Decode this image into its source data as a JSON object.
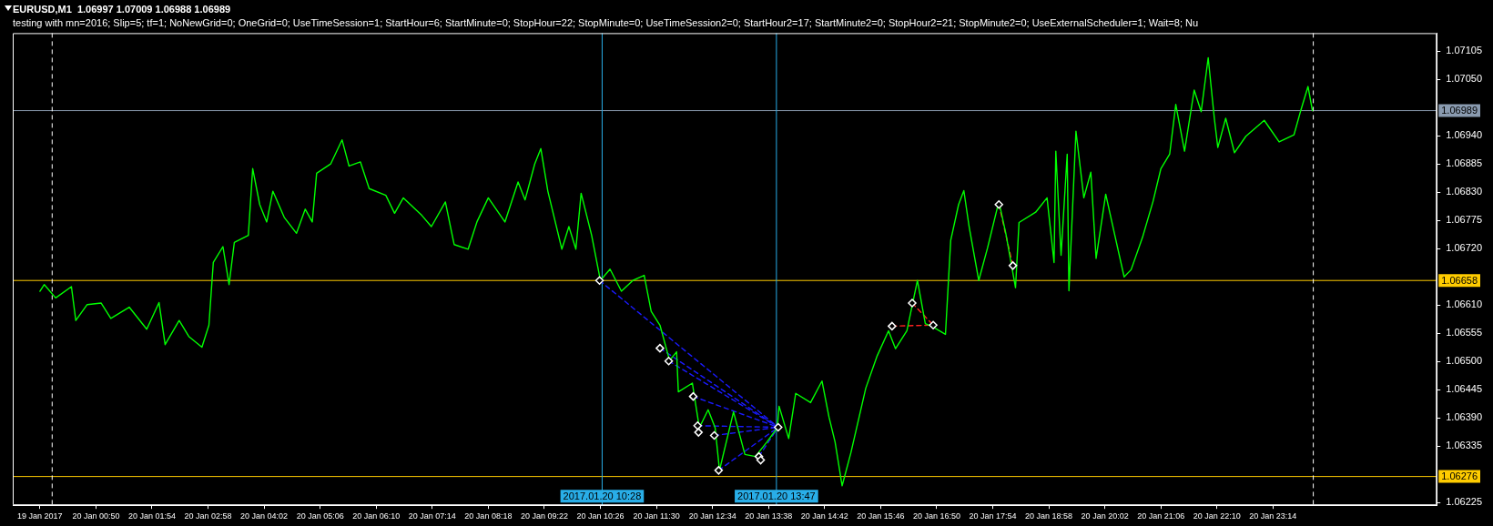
{
  "chart_data": {
    "type": "line",
    "title": "EURUSD,M1  1.06997 1.07009 1.06988 1.06989",
    "subtitle": "testing with mn=2016; Slip=5; tf=1; NoNewGrid=0; OneGrid=0; UseTimeSession=1; StartHour=6; StartMinute=0; StopHour=22; StopMinute=0; UseTimeSession2=0; StartHour2=17; StartMinute2=0; StopHour2=21; StopMinute2=0; UseExternalScheduler=1; Wait=8; Nu",
    "xlim": [
      "2017-01-19T23:15",
      "2017-01-21T02:21"
    ],
    "xticks": [
      {
        "value": "2017-01-19T23:46",
        "label": "19 Jan 2017"
      },
      {
        "value": "2017-01-20T00:50",
        "label": "20 Jan 00:50"
      },
      {
        "value": "2017-01-20T01:54",
        "label": "20 Jan 01:54"
      },
      {
        "value": "2017-01-20T02:58",
        "label": "20 Jan 02:58"
      },
      {
        "value": "2017-01-20T04:02",
        "label": "20 Jan 04:02"
      },
      {
        "value": "2017-01-20T05:06",
        "label": "20 Jan 05:06"
      },
      {
        "value": "2017-01-20T06:10",
        "label": "20 Jan 06:10"
      },
      {
        "value": "2017-01-20T07:14",
        "label": "20 Jan 07:14"
      },
      {
        "value": "2017-01-20T08:18",
        "label": "20 Jan 08:18"
      },
      {
        "value": "2017-01-20T09:22",
        "label": "20 Jan 09:22"
      },
      {
        "value": "2017-01-20T10:26",
        "label": "20 Jan 10:26"
      },
      {
        "value": "2017-01-20T11:30",
        "label": "20 Jan 11:30"
      },
      {
        "value": "2017-01-20T12:34",
        "label": "20 Jan 12:34"
      },
      {
        "value": "2017-01-20T13:38",
        "label": "20 Jan 13:38"
      },
      {
        "value": "2017-01-20T14:42",
        "label": "20 Jan 14:42"
      },
      {
        "value": "2017-01-20T15:46",
        "label": "20 Jan 15:46"
      },
      {
        "value": "2017-01-20T16:50",
        "label": "20 Jan 16:50"
      },
      {
        "value": "2017-01-20T17:54",
        "label": "20 Jan 17:54"
      },
      {
        "value": "2017-01-20T18:58",
        "label": "20 Jan 18:58"
      },
      {
        "value": "2017-01-20T20:02",
        "label": "20 Jan 20:02"
      },
      {
        "value": "2017-01-20T21:06",
        "label": "20 Jan 21:06"
      },
      {
        "value": "2017-01-20T22:10",
        "label": "20 Jan 22:10"
      },
      {
        "value": "2017-01-20T23:14",
        "label": "20 Jan 23:14"
      }
    ],
    "ylim": [
      1.0622,
      1.0714
    ],
    "yticks": [
      {
        "value": 1.07105,
        "label": "1.07105"
      },
      {
        "value": 1.0705,
        "label": "1.07050"
      },
      {
        "value": 1.0694,
        "label": "1.06940"
      },
      {
        "value": 1.06885,
        "label": "1.06885"
      },
      {
        "value": 1.0683,
        "label": "1.06830"
      },
      {
        "value": 1.06775,
        "label": "1.06775"
      },
      {
        "value": 1.0672,
        "label": "1.06720"
      },
      {
        "value": 1.0661,
        "label": "1.06610"
      },
      {
        "value": 1.06555,
        "label": "1.06555"
      },
      {
        "value": 1.065,
        "label": "1.06500"
      },
      {
        "value": 1.06445,
        "label": "1.06445"
      },
      {
        "value": 1.0639,
        "label": "1.06390"
      },
      {
        "value": 1.06335,
        "label": "1.06335"
      },
      {
        "value": 1.06225,
        "label": "1.06225"
      }
    ],
    "ref_lines": [
      {
        "axis": "y",
        "value": 1.06989,
        "label": "1.06989",
        "color": "#8a9bb0"
      },
      {
        "axis": "y",
        "value": 1.06658,
        "label": "1.06658",
        "color": "#ffcc00"
      },
      {
        "axis": "y",
        "value": 1.06276,
        "label": "1.06276",
        "color": "#ffcc00"
      },
      {
        "axis": "x",
        "value": "2017-01-20T10:28",
        "label": "2017.01.20 10:28",
        "color": "#29aee8"
      },
      {
        "axis": "x",
        "value": "2017-01-20T13:47",
        "label": "2017.01.20 13:47",
        "color": "#29aee8"
      },
      {
        "axis": "x",
        "value": "2017-01-20T00:00",
        "color": "#ffffff",
        "line_style": "dashed"
      },
      {
        "axis": "x",
        "value": "2017-01-21T00:00",
        "color": "#ffffff",
        "line_style": "dashed"
      }
    ],
    "series": [
      {
        "color": "#00ff00",
        "x": [
          "2017-01-19T23:46",
          "2017-01-19T23:51",
          "2017-01-20T00:04",
          "2017-01-20T00:22",
          "2017-01-20T00:27",
          "2017-01-20T00:40",
          "2017-01-20T00:56",
          "2017-01-20T01:07",
          "2017-01-20T01:28",
          "2017-01-20T01:48",
          "2017-01-20T02:02",
          "2017-01-20T02:09",
          "2017-01-20T02:25",
          "2017-01-20T02:36",
          "2017-01-20T02:51",
          "2017-01-20T02:59",
          "2017-01-20T03:04",
          "2017-01-20T03:15",
          "2017-01-20T03:22",
          "2017-01-20T03:28",
          "2017-01-20T03:44",
          "2017-01-20T03:49",
          "2017-01-20T03:57",
          "2017-01-20T04:05",
          "2017-01-20T04:12",
          "2017-01-20T04:25",
          "2017-01-20T04:39",
          "2017-01-20T04:49",
          "2017-01-20T04:57",
          "2017-01-20T05:02",
          "2017-01-20T05:18",
          "2017-01-20T05:31",
          "2017-01-20T05:39",
          "2017-01-20T05:52",
          "2017-01-20T06:02",
          "2017-01-20T06:21",
          "2017-01-20T06:31",
          "2017-01-20T06:41",
          "2017-01-20T07:02",
          "2017-01-20T07:13",
          "2017-01-20T07:29",
          "2017-01-20T07:39",
          "2017-01-20T07:55",
          "2017-01-20T08:05",
          "2017-01-20T08:18",
          "2017-01-20T08:37",
          "2017-01-20T08:52",
          "2017-01-20T09:00",
          "2017-01-20T09:11",
          "2017-01-20T09:18",
          "2017-01-20T09:26",
          "2017-01-20T09:42",
          "2017-01-20T09:50",
          "2017-01-20T09:58",
          "2017-01-20T10:04",
          "2017-01-20T10:16",
          "2017-01-20T10:26",
          "2017-01-20T10:37",
          "2017-01-20T10:50",
          "2017-01-20T11:03",
          "2017-01-20T11:16",
          "2017-01-20T11:24",
          "2017-01-20T11:34",
          "2017-01-20T11:45",
          "2017-01-20T11:53",
          "2017-01-20T11:55",
          "2017-01-20T12:11",
          "2017-01-20T12:19",
          "2017-01-20T12:29",
          "2017-01-20T12:37",
          "2017-01-20T12:42",
          "2017-01-20T12:58",
          "2017-01-20T13:11",
          "2017-01-20T13:23",
          "2017-01-20T13:36",
          "2017-01-20T13:48",
          "2017-01-20T13:50",
          "2017-01-20T14:01",
          "2017-01-20T14:09",
          "2017-01-20T14:26",
          "2017-01-20T14:39",
          "2017-01-20T14:47",
          "2017-01-20T14:54",
          "2017-01-20T15:02",
          "2017-01-20T15:12",
          "2017-01-20T15:29",
          "2017-01-20T15:42",
          "2017-01-20T15:55",
          "2017-01-20T16:03",
          "2017-01-20T16:16",
          "2017-01-20T16:28",
          "2017-01-20T16:37",
          "2017-01-20T16:45",
          "2017-01-20T17:00",
          "2017-01-20T17:06",
          "2017-01-20T17:15",
          "2017-01-20T17:21",
          "2017-01-20T17:27",
          "2017-01-20T17:38",
          "2017-01-20T17:48",
          "2017-01-20T18:01",
          "2017-01-20T18:09",
          "2017-01-20T18:20",
          "2017-01-20T18:24",
          "2017-01-20T18:43",
          "2017-01-20T18:56",
          "2017-01-20T19:04",
          "2017-01-20T19:06",
          "2017-01-20T19:12",
          "2017-01-20T19:19",
          "2017-01-20T19:21",
          "2017-01-20T19:29",
          "2017-01-20T19:38",
          "2017-01-20T19:46",
          "2017-01-20T19:52",
          "2017-01-20T20:03",
          "2017-01-20T20:13",
          "2017-01-20T20:24",
          "2017-01-20T20:32",
          "2017-01-20T20:45",
          "2017-01-20T20:57",
          "2017-01-20T21:06",
          "2017-01-20T21:16",
          "2017-01-20T21:23",
          "2017-01-20T21:33",
          "2017-01-20T21:44",
          "2017-01-20T21:52",
          "2017-01-20T22:00",
          "2017-01-20T22:07",
          "2017-01-20T22:11",
          "2017-01-20T22:20",
          "2017-01-20T22:30",
          "2017-01-20T22:43",
          "2017-01-20T23:04",
          "2017-01-20T23:21",
          "2017-01-20T23:38",
          "2017-01-20T23:46",
          "2017-01-20T23:54",
          "2017-01-20T23:59"
        ],
        "values": [
          1.06637,
          1.0665,
          1.06624,
          1.06646,
          1.0658,
          1.06611,
          1.06614,
          1.06584,
          1.06606,
          1.06563,
          1.06615,
          1.06533,
          1.0658,
          1.06549,
          1.06528,
          1.06571,
          1.06693,
          1.06724,
          1.0665,
          1.06732,
          1.06746,
          1.06876,
          1.06806,
          1.06772,
          1.06832,
          1.06781,
          1.0675,
          1.06797,
          1.06772,
          1.06867,
          1.06885,
          1.06932,
          1.06881,
          1.06889,
          1.06837,
          1.06824,
          1.06789,
          1.06819,
          1.06785,
          1.06763,
          1.06811,
          1.06728,
          1.06719,
          1.06772,
          1.06819,
          1.06772,
          1.0685,
          1.06815,
          1.06885,
          1.06915,
          1.06832,
          1.06719,
          1.06763,
          1.06719,
          1.06828,
          1.06746,
          1.06658,
          1.0668,
          1.06637,
          1.06658,
          1.06668,
          1.06598,
          1.06571,
          1.06502,
          1.06519,
          1.06441,
          1.06458,
          1.06371,
          1.06406,
          1.06371,
          1.06288,
          1.06402,
          1.06319,
          1.06315,
          1.06343,
          1.06371,
          1.06413,
          1.0635,
          1.06438,
          1.0642,
          1.06462,
          1.06392,
          1.06343,
          1.06258,
          1.06322,
          1.06448,
          1.06511,
          1.0656,
          1.06525,
          1.0656,
          1.06658,
          1.06574,
          1.06568,
          1.06553,
          1.06736,
          1.06806,
          1.06833,
          1.06763,
          1.06658,
          1.06721,
          1.06812,
          1.06749,
          1.06644,
          1.06771,
          1.06791,
          1.06819,
          1.06693,
          1.0691,
          1.06707,
          1.06904,
          1.06638,
          1.06949,
          1.06819,
          1.06869,
          1.06701,
          1.06826,
          1.06749,
          1.06665,
          1.06679,
          1.06742,
          1.06812,
          1.06876,
          1.06904,
          1.07001,
          1.0691,
          1.07029,
          1.06987,
          1.07092,
          1.06974,
          1.06917,
          1.06974,
          1.06907,
          1.06939,
          1.0697,
          1.06928,
          1.06942,
          1.06991,
          1.07036,
          1.06989
        ]
      },
      {
        "type": "line",
        "color": "#1a1aff",
        "line_style": "dashed",
        "x": [
          "2017-01-20T10:25",
          "2017-01-20T13:49"
        ],
        "values": [
          1.06658,
          1.06372
        ]
      },
      {
        "type": "line",
        "color": "#1a1aff",
        "line_style": "dashed",
        "x": [
          "2017-01-20T11:34",
          "2017-01-20T13:49"
        ],
        "values": [
          1.06526,
          1.06372
        ]
      },
      {
        "type": "line",
        "color": "#1a1aff",
        "line_style": "dashed",
        "x": [
          "2017-01-20T11:44",
          "2017-01-20T13:49"
        ],
        "values": [
          1.06501,
          1.06372
        ]
      },
      {
        "type": "line",
        "color": "#1a1aff",
        "line_style": "dashed",
        "x": [
          "2017-01-20T12:12",
          "2017-01-20T13:49"
        ],
        "values": [
          1.06432,
          1.06372
        ]
      },
      {
        "type": "line",
        "color": "#1a1aff",
        "line_style": "dashed",
        "x": [
          "2017-01-20T12:17",
          "2017-01-20T13:49"
        ],
        "values": [
          1.06375,
          1.06372
        ]
      },
      {
        "type": "line",
        "color": "#1a1aff",
        "line_style": "dashed",
        "x": [
          "2017-01-20T12:36",
          "2017-01-20T13:49"
        ],
        "values": [
          1.06356,
          1.06372
        ]
      },
      {
        "type": "line",
        "color": "#1a1aff",
        "line_style": "dashed",
        "x": [
          "2017-01-20T12:41",
          "2017-01-20T13:49"
        ],
        "values": [
          1.06288,
          1.06372
        ]
      },
      {
        "type": "line",
        "color": "#1a1aff",
        "line_style": "dashed",
        "x": [
          "2017-01-20T13:27",
          "2017-01-20T13:49"
        ],
        "values": [
          1.06315,
          1.06372
        ]
      },
      {
        "type": "line",
        "color": "#ff2020",
        "line_style": "dashed",
        "x": [
          "2017-01-20T15:59",
          "2017-01-20T16:46"
        ],
        "values": [
          1.06569,
          1.06571
        ]
      },
      {
        "type": "line",
        "color": "#ff2020",
        "line_style": "dashed",
        "x": [
          "2017-01-20T16:22",
          "2017-01-20T16:46"
        ],
        "values": [
          1.06614,
          1.06571
        ]
      },
      {
        "type": "line",
        "color": "#ff2020",
        "line_style": "dashed",
        "x": [
          "2017-01-20T18:01",
          "2017-01-20T18:17"
        ],
        "values": [
          1.06806,
          1.06687
        ]
      },
      {
        "type": "scatter",
        "color": "#ffffff",
        "marker": "diamond",
        "x": [
          "2017-01-20T10:25",
          "2017-01-20T11:34",
          "2017-01-20T11:44",
          "2017-01-20T12:12",
          "2017-01-20T12:17",
          "2017-01-20T12:18",
          "2017-01-20T12:36",
          "2017-01-20T12:41",
          "2017-01-20T13:27",
          "2017-01-20T13:29",
          "2017-01-20T13:49",
          "2017-01-20T15:59",
          "2017-01-20T16:22",
          "2017-01-20T16:46",
          "2017-01-20T18:01",
          "2017-01-20T18:17"
        ],
        "values": [
          1.06658,
          1.06526,
          1.06501,
          1.06432,
          1.06375,
          1.06362,
          1.06356,
          1.06288,
          1.06315,
          1.06308,
          1.06372,
          1.06569,
          1.06614,
          1.06571,
          1.06806,
          1.06687
        ]
      }
    ]
  }
}
